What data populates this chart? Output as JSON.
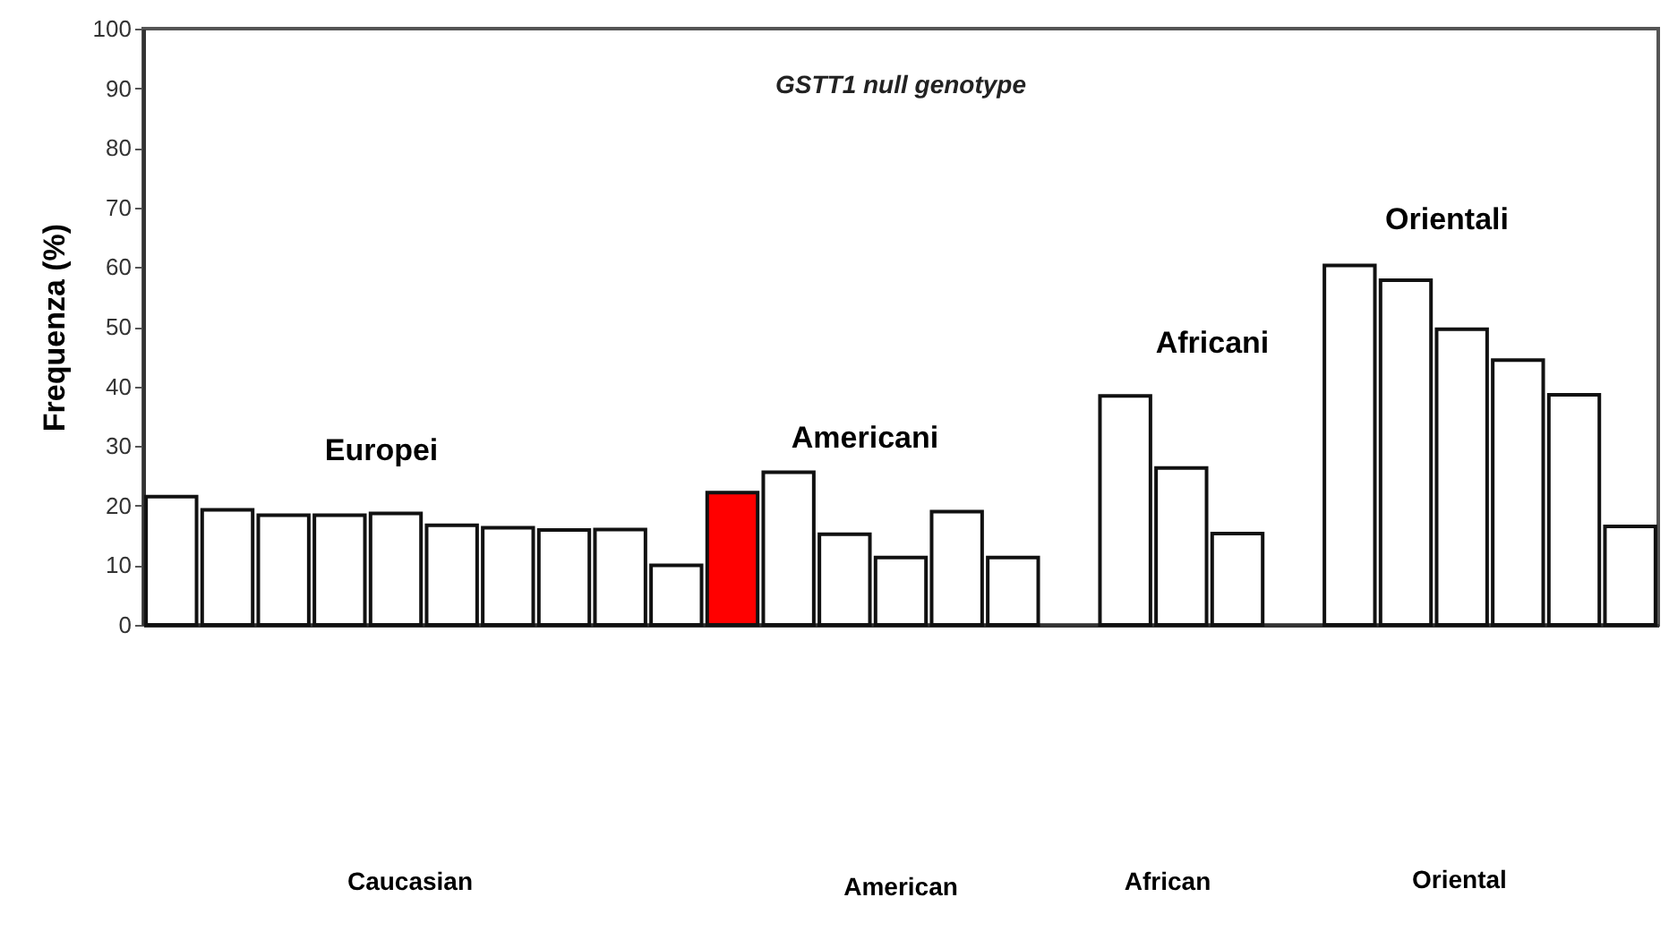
{
  "chart_data": {
    "type": "bar",
    "title": "GSTT1 null genotype",
    "ylabel": "Frequenza (%)",
    "categories": [
      null,
      null,
      null,
      null,
      null,
      null,
      null,
      null,
      null,
      null,
      null,
      null,
      null,
      null,
      null,
      null,
      null,
      null,
      null,
      null,
      null,
      null,
      null,
      null,
      null,
      null,
      null
    ],
    "values": [
      21.5,
      19.3,
      18.4,
      18.4,
      18.7,
      16.7,
      16.3,
      15.9,
      16.0,
      10.0,
      22.2,
      25.6,
      15.2,
      11.3,
      19.0,
      11.3,
      null,
      38.4,
      26.3,
      15.3,
      null,
      60.3,
      57.8,
      49.6,
      44.4,
      38.6,
      16.5
    ],
    "colors": [
      "#ffffff",
      "#ffffff",
      "#ffffff",
      "#ffffff",
      "#ffffff",
      "#ffffff",
      "#ffffff",
      "#ffffff",
      "#ffffff",
      "#ffffff",
      "#ff0000",
      "#ffffff",
      "#ffffff",
      "#ffffff",
      "#ffffff",
      "#ffffff",
      null,
      "#ffffff",
      "#ffffff",
      "#ffffff",
      null,
      "#ffffff",
      "#ffffff",
      "#ffffff",
      "#ffffff",
      "#ffffff",
      "#ffffff"
    ],
    "ylim": [
      0,
      100
    ],
    "yticks": [
      0,
      10,
      20,
      30,
      40,
      50,
      60,
      70,
      80,
      90,
      100
    ],
    "annotations": [
      "Europei",
      "Americani",
      "Africani",
      "Orientali",
      "Caucasian",
      "American",
      "African",
      "Oriental"
    ]
  }
}
